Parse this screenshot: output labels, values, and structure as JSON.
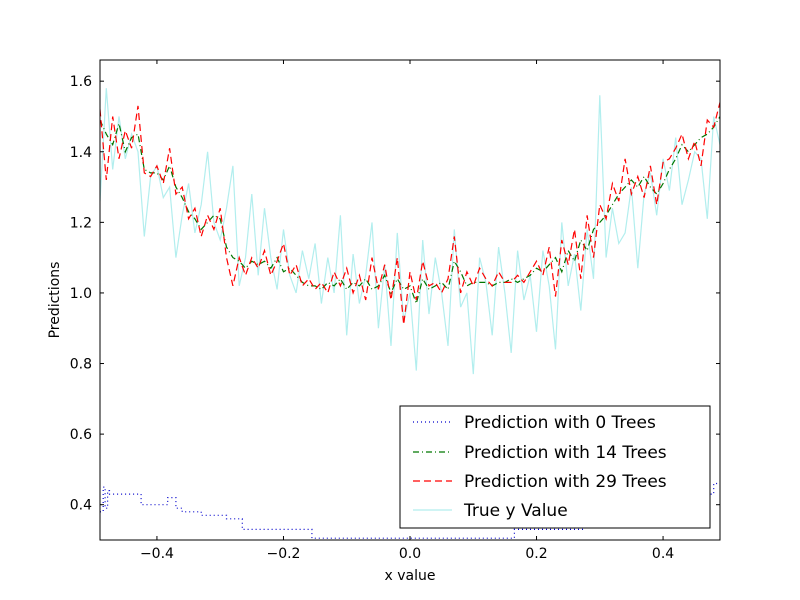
{
  "chart_data": {
    "type": "line",
    "xlabel": "x value",
    "ylabel": "Predictions",
    "xlim": [
      -0.49,
      0.49
    ],
    "ylim": [
      0.3,
      1.66
    ],
    "x_ticks": [
      -0.4,
      -0.2,
      0.0,
      0.2,
      0.4
    ],
    "x_tick_labels": [
      "−0.4",
      "−0.2",
      "0.0",
      "0.2",
      "0.4"
    ],
    "y_ticks": [
      0.4,
      0.6,
      0.8,
      1.0,
      1.2,
      1.4,
      1.6
    ],
    "y_tick_labels": [
      "0.4",
      "0.6",
      "0.8",
      "1.0",
      "1.2",
      "1.4",
      "1.6"
    ],
    "grid": false,
    "legend_position": "lower-right",
    "series": [
      {
        "name": "True y Value",
        "color": "#b2eeee",
        "style": "solid",
        "x": [
          -0.49,
          -0.48,
          -0.47,
          -0.46,
          -0.45,
          -0.44,
          -0.43,
          -0.42,
          -0.41,
          -0.4,
          -0.39,
          -0.38,
          -0.37,
          -0.36,
          -0.35,
          -0.34,
          -0.33,
          -0.32,
          -0.31,
          -0.3,
          -0.29,
          -0.28,
          -0.27,
          -0.26,
          -0.25,
          -0.24,
          -0.23,
          -0.22,
          -0.21,
          -0.2,
          -0.19,
          -0.18,
          -0.17,
          -0.16,
          -0.15,
          -0.14,
          -0.13,
          -0.12,
          -0.11,
          -0.1,
          -0.09,
          -0.08,
          -0.07,
          -0.06,
          -0.05,
          -0.04,
          -0.03,
          -0.02,
          -0.01,
          0.0,
          0.01,
          0.02,
          0.03,
          0.04,
          0.05,
          0.06,
          0.07,
          0.08,
          0.09,
          0.1,
          0.11,
          0.12,
          0.13,
          0.14,
          0.15,
          0.16,
          0.17,
          0.18,
          0.19,
          0.2,
          0.21,
          0.22,
          0.23,
          0.24,
          0.25,
          0.26,
          0.27,
          0.28,
          0.29,
          0.3,
          0.31,
          0.32,
          0.33,
          0.34,
          0.35,
          0.36,
          0.37,
          0.38,
          0.39,
          0.4,
          0.41,
          0.42,
          0.43,
          0.44,
          0.45,
          0.46,
          0.47,
          0.48,
          0.49
        ],
        "values": [
          1.26,
          1.58,
          1.35,
          1.5,
          1.38,
          1.45,
          1.4,
          1.16,
          1.33,
          1.36,
          1.27,
          1.3,
          1.1,
          1.22,
          1.31,
          1.17,
          1.25,
          1.4,
          1.2,
          1.15,
          1.24,
          1.36,
          1.02,
          1.1,
          1.28,
          1.05,
          1.24,
          1.1,
          1.01,
          1.18,
          1.05,
          1.0,
          1.12,
          1.04,
          1.14,
          0.97,
          1.1,
          1.0,
          1.22,
          0.88,
          1.11,
          0.97,
          1.05,
          1.2,
          0.9,
          1.08,
          0.85,
          1.17,
          0.92,
          1.0,
          0.78,
          1.15,
          0.94,
          1.1,
          1.0,
          0.85,
          1.18,
          0.96,
          1.0,
          0.77,
          1.1,
          1.03,
          0.88,
          1.13,
          1.0,
          0.83,
          1.12,
          0.98,
          1.05,
          0.89,
          1.12,
          1.02,
          0.84,
          1.2,
          1.02,
          1.11,
          0.95,
          1.18,
          1.04,
          1.56,
          1.1,
          1.24,
          1.14,
          1.17,
          1.3,
          1.07,
          1.28,
          1.34,
          1.22,
          1.38,
          1.29,
          1.44,
          1.25,
          1.32,
          1.4,
          1.38,
          1.21,
          1.5,
          1.42
        ]
      },
      {
        "name": "Prediction with 0 Trees",
        "color": "#0000cc",
        "style": "dotted",
        "x": [
          -0.49,
          -0.485,
          -0.482,
          -0.478,
          -0.475,
          -0.46,
          -0.44,
          -0.43,
          -0.425,
          -0.4,
          -0.385,
          -0.383,
          -0.375,
          -0.37,
          -0.36,
          -0.33,
          -0.29,
          -0.27,
          -0.265,
          -0.2,
          -0.16,
          -0.155,
          0.0,
          0.16,
          0.165,
          0.27,
          0.275,
          0.3,
          0.47,
          0.48,
          0.49
        ],
        "values": [
          0.38,
          0.45,
          0.39,
          0.44,
          0.43,
          0.43,
          0.43,
          0.43,
          0.4,
          0.4,
          0.4,
          0.42,
          0.42,
          0.39,
          0.38,
          0.37,
          0.36,
          0.36,
          0.33,
          0.33,
          0.33,
          0.305,
          0.305,
          0.305,
          0.33,
          0.33,
          0.34,
          0.34,
          0.43,
          0.46,
          0.46
        ]
      },
      {
        "name": "Prediction with 14 Trees",
        "color": "#007700",
        "style": "dashdot",
        "x": [
          -0.49,
          -0.48,
          -0.47,
          -0.46,
          -0.45,
          -0.44,
          -0.43,
          -0.42,
          -0.41,
          -0.4,
          -0.39,
          -0.38,
          -0.37,
          -0.36,
          -0.35,
          -0.34,
          -0.33,
          -0.32,
          -0.31,
          -0.3,
          -0.29,
          -0.28,
          -0.27,
          -0.26,
          -0.25,
          -0.24,
          -0.23,
          -0.22,
          -0.21,
          -0.2,
          -0.19,
          -0.18,
          -0.17,
          -0.16,
          -0.15,
          -0.14,
          -0.13,
          -0.12,
          -0.11,
          -0.1,
          -0.09,
          -0.08,
          -0.07,
          -0.06,
          -0.05,
          -0.04,
          -0.03,
          -0.02,
          -0.01,
          0.0,
          0.01,
          0.02,
          0.03,
          0.04,
          0.05,
          0.06,
          0.07,
          0.08,
          0.09,
          0.1,
          0.11,
          0.12,
          0.13,
          0.14,
          0.15,
          0.16,
          0.17,
          0.18,
          0.19,
          0.2,
          0.21,
          0.22,
          0.23,
          0.24,
          0.25,
          0.26,
          0.27,
          0.28,
          0.29,
          0.3,
          0.31,
          0.32,
          0.33,
          0.34,
          0.35,
          0.36,
          0.37,
          0.38,
          0.39,
          0.4,
          0.41,
          0.42,
          0.43,
          0.44,
          0.45,
          0.46,
          0.47,
          0.48,
          0.49
        ],
        "values": [
          1.49,
          1.45,
          1.42,
          1.48,
          1.4,
          1.44,
          1.45,
          1.35,
          1.34,
          1.34,
          1.32,
          1.36,
          1.3,
          1.27,
          1.23,
          1.21,
          1.18,
          1.2,
          1.22,
          1.21,
          1.13,
          1.1,
          1.09,
          1.07,
          1.09,
          1.08,
          1.09,
          1.07,
          1.1,
          1.06,
          1.07,
          1.05,
          1.03,
          1.02,
          1.02,
          1.01,
          1.03,
          1.02,
          1.04,
          1.01,
          1.03,
          1.02,
          1.04,
          1.01,
          1.02,
          1.05,
          1.0,
          1.04,
          1.01,
          1.02,
          0.97,
          1.04,
          1.01,
          1.02,
          1.03,
          1.01,
          1.09,
          1.06,
          1.02,
          1.03,
          1.03,
          1.03,
          1.02,
          1.03,
          1.03,
          1.04,
          1.03,
          1.04,
          1.05,
          1.07,
          1.06,
          1.08,
          1.1,
          1.06,
          1.12,
          1.09,
          1.15,
          1.12,
          1.18,
          1.2,
          1.22,
          1.25,
          1.28,
          1.3,
          1.32,
          1.3,
          1.33,
          1.3,
          1.28,
          1.31,
          1.35,
          1.38,
          1.42,
          1.4,
          1.42,
          1.44,
          1.45,
          1.47,
          1.5
        ]
      },
      {
        "name": "Prediction with 29 Trees",
        "color": "#ff0000",
        "style": "dashed",
        "x": [
          -0.49,
          -0.48,
          -0.47,
          -0.46,
          -0.45,
          -0.44,
          -0.43,
          -0.42,
          -0.41,
          -0.4,
          -0.39,
          -0.38,
          -0.37,
          -0.36,
          -0.35,
          -0.34,
          -0.33,
          -0.32,
          -0.31,
          -0.3,
          -0.29,
          -0.28,
          -0.27,
          -0.26,
          -0.25,
          -0.24,
          -0.23,
          -0.22,
          -0.21,
          -0.2,
          -0.19,
          -0.18,
          -0.17,
          -0.16,
          -0.15,
          -0.14,
          -0.13,
          -0.12,
          -0.11,
          -0.1,
          -0.09,
          -0.08,
          -0.07,
          -0.06,
          -0.05,
          -0.04,
          -0.03,
          -0.02,
          -0.01,
          0.0,
          0.01,
          0.02,
          0.03,
          0.04,
          0.05,
          0.06,
          0.07,
          0.08,
          0.09,
          0.1,
          0.11,
          0.12,
          0.13,
          0.14,
          0.15,
          0.16,
          0.17,
          0.18,
          0.19,
          0.2,
          0.21,
          0.22,
          0.23,
          0.24,
          0.25,
          0.26,
          0.27,
          0.28,
          0.29,
          0.3,
          0.31,
          0.32,
          0.33,
          0.34,
          0.35,
          0.36,
          0.37,
          0.38,
          0.39,
          0.4,
          0.41,
          0.42,
          0.43,
          0.44,
          0.45,
          0.46,
          0.47,
          0.48,
          0.49
        ],
        "values": [
          1.52,
          1.32,
          1.5,
          1.38,
          1.46,
          1.41,
          1.53,
          1.34,
          1.33,
          1.36,
          1.31,
          1.41,
          1.28,
          1.3,
          1.21,
          1.24,
          1.16,
          1.22,
          1.18,
          1.24,
          1.1,
          1.02,
          1.1,
          1.05,
          1.1,
          1.07,
          1.12,
          1.05,
          1.09,
          1.14,
          1.05,
          1.08,
          1.02,
          1.04,
          1.01,
          1.03,
          1.0,
          1.06,
          1.02,
          1.07,
          1.0,
          1.05,
          0.98,
          1.1,
          1.01,
          1.08,
          0.98,
          1.1,
          0.91,
          1.06,
          0.98,
          1.09,
          1.02,
          1.03,
          1.0,
          1.04,
          1.16,
          1.0,
          1.06,
          1.02,
          1.07,
          1.04,
          1.02,
          1.06,
          1.03,
          1.03,
          1.05,
          1.03,
          1.06,
          1.09,
          1.05,
          1.13,
          0.99,
          1.15,
          1.08,
          1.18,
          1.04,
          1.22,
          1.1,
          1.25,
          1.21,
          1.31,
          1.26,
          1.38,
          1.28,
          1.33,
          1.27,
          1.36,
          1.25,
          1.37,
          1.38,
          1.41,
          1.45,
          1.38,
          1.43,
          1.36,
          1.49,
          1.47,
          1.54
        ]
      }
    ]
  }
}
